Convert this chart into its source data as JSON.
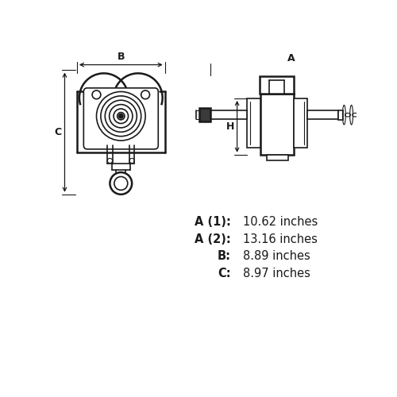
{
  "background_color": "#ffffff",
  "line_color": "#1a1a1a",
  "specs": [
    {
      "label": "A (1):",
      "value": "10.62 inches"
    },
    {
      "label": "A (2):",
      "value": "13.16 inches"
    },
    {
      "label": "B:",
      "value": "8.89 inches"
    },
    {
      "label": "C:",
      "value": "8.97 inches"
    }
  ],
  "spec_label_fontsize": 10.5,
  "spec_value_fontsize": 10.5,
  "dim_label_fontsize": 9,
  "fig_width": 5.0,
  "fig_height": 5.0,
  "dpi": 100
}
